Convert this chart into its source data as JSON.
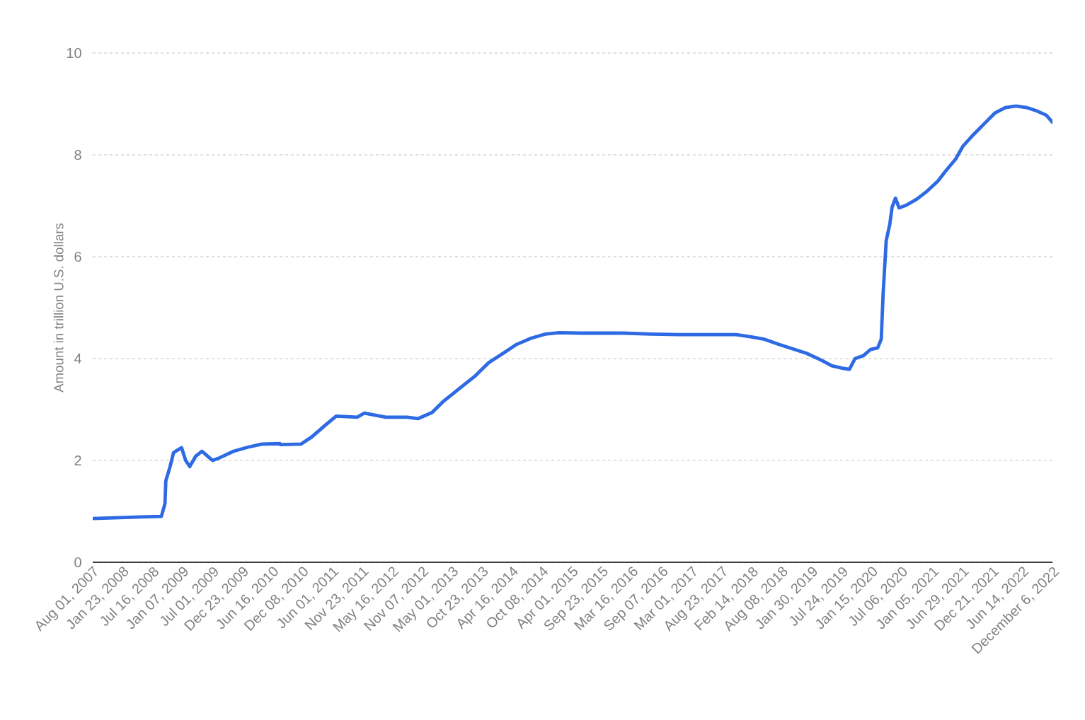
{
  "chart_data": {
    "type": "line",
    "ylabel": "Amount in trillion U.S. dollars",
    "xlim": [
      "2007-08-01",
      "2022-12-06"
    ],
    "ylim": [
      0,
      10
    ],
    "yticks": [
      0,
      2,
      4,
      6,
      8,
      10
    ],
    "xticks": [
      {
        "value": "2007-08-01",
        "label": "Aug 01, 2007"
      },
      {
        "value": "2008-01-23",
        "label": "Jan 23, 2008"
      },
      {
        "value": "2008-07-16",
        "label": "Jul 16, 2008"
      },
      {
        "value": "2009-01-07",
        "label": "Jan 07, 2009"
      },
      {
        "value": "2009-07-01",
        "label": "Jul 01, 2009"
      },
      {
        "value": "2009-12-23",
        "label": "Dec 23, 2009"
      },
      {
        "value": "2010-06-16",
        "label": "Jun 16, 2010"
      },
      {
        "value": "2010-12-08",
        "label": "Dec 08, 2010"
      },
      {
        "value": "2011-06-01",
        "label": "Jun 01, 2011"
      },
      {
        "value": "2011-11-23",
        "label": "Nov 23, 2011"
      },
      {
        "value": "2012-05-16",
        "label": "May 16, 2012"
      },
      {
        "value": "2012-11-07",
        "label": "Nov 07, 2012"
      },
      {
        "value": "2013-05-01",
        "label": "May 01, 2013"
      },
      {
        "value": "2013-10-23",
        "label": "Oct 23, 2013"
      },
      {
        "value": "2014-04-16",
        "label": "Apr 16, 2014"
      },
      {
        "value": "2014-10-08",
        "label": "Oct 08, 2014"
      },
      {
        "value": "2015-04-01",
        "label": "Apr 01, 2015"
      },
      {
        "value": "2015-09-23",
        "label": "Sep 23, 2015"
      },
      {
        "value": "2016-03-16",
        "label": "Mar 16, 2016"
      },
      {
        "value": "2016-09-07",
        "label": "Sep 07, 2016"
      },
      {
        "value": "2017-03-01",
        "label": "Mar 01, 2017"
      },
      {
        "value": "2017-08-23",
        "label": "Aug 23, 2017"
      },
      {
        "value": "2018-02-14",
        "label": "Feb 14, 2018"
      },
      {
        "value": "2018-08-08",
        "label": "Aug 08, 2018"
      },
      {
        "value": "2019-01-30",
        "label": "Jan 30, 2019"
      },
      {
        "value": "2019-07-24",
        "label": "Jul 24, 2019"
      },
      {
        "value": "2020-01-15",
        "label": "Jan 15, 2020"
      },
      {
        "value": "2020-07-06",
        "label": "Jul 06, 2020"
      },
      {
        "value": "2021-01-05",
        "label": "Jan 05, 2021"
      },
      {
        "value": "2021-06-29",
        "label": "Jun 29, 2021"
      },
      {
        "value": "2021-12-21",
        "label": "Dec 21, 2021"
      },
      {
        "value": "2022-06-14",
        "label": "Jun 14, 2022"
      },
      {
        "value": "2022-12-06",
        "label": "December 6, 2022"
      }
    ],
    "x": [
      "2007-08-01",
      "2008-05-12",
      "2008-09-05",
      "2008-09-26",
      "2008-10-01",
      "2008-10-26",
      "2008-11-15",
      "2008-12-07",
      "2009-01-01",
      "2009-01-25",
      "2009-02-18",
      "2009-03-24",
      "2009-04-30",
      "2009-05-28",
      "2009-07-01",
      "2009-08-10",
      "2009-11-01",
      "2010-01-24",
      "2010-04-16",
      "2010-07-29",
      "2010-08-01",
      "2010-11-29",
      "2011-01-31",
      "2011-04-23",
      "2011-06-23",
      "2011-10-25",
      "2011-12-05",
      "2012-04-08",
      "2012-08-11",
      "2012-10-12",
      "2013-01-03",
      "2013-03-07",
      "2013-06-18",
      "2013-09-09",
      "2013-11-30",
      "2014-02-21",
      "2014-05-13",
      "2014-08-04",
      "2014-10-26",
      "2015-01-16",
      "2015-05-20",
      "2015-09-21",
      "2016-01-23",
      "2016-07-07",
      "2016-12-19",
      "2017-06-03",
      "2017-11-15",
      "2018-02-06",
      "2018-04-29",
      "2018-07-20",
      "2018-10-11",
      "2019-01-02",
      "2019-03-26",
      "2019-05-27",
      "2019-07-28",
      "2019-09-07",
      "2019-10-10",
      "2019-11-29",
      "2020-01-09",
      "2020-02-19",
      "2020-03-11",
      "2020-03-22",
      "2020-04-09",
      "2020-04-30",
      "2020-05-13",
      "2020-06-02",
      "2020-06-23",
      "2020-08-03",
      "2020-10-04",
      "2020-12-05",
      "2021-02-06",
      "2021-03-19",
      "2021-05-20",
      "2021-07-01",
      "2021-09-01",
      "2021-11-02",
      "2022-01-03",
      "2022-03-06",
      "2022-05-07",
      "2022-07-08",
      "2022-09-08",
      "2022-10-31",
      "2022-12-06"
    ],
    "series": [
      {
        "color": "#2d6ae3",
        "values": [
          0.86,
          0.89,
          0.9,
          1.15,
          1.6,
          1.88,
          2.15,
          2.2,
          2.25,
          2.0,
          1.88,
          2.08,
          2.18,
          2.1,
          2.0,
          2.05,
          2.18,
          2.26,
          2.32,
          2.33,
          2.31,
          2.32,
          2.46,
          2.7,
          2.87,
          2.85,
          2.93,
          2.85,
          2.85,
          2.82,
          2.94,
          3.15,
          3.43,
          3.65,
          3.92,
          4.1,
          4.28,
          4.4,
          4.48,
          4.51,
          4.5,
          4.5,
          4.5,
          4.48,
          4.47,
          4.47,
          4.47,
          4.43,
          4.38,
          4.28,
          4.19,
          4.1,
          3.97,
          3.86,
          3.81,
          3.79,
          4.0,
          4.06,
          4.18,
          4.21,
          4.38,
          5.28,
          6.32,
          6.64,
          6.97,
          7.15,
          6.96,
          7.01,
          7.13,
          7.29,
          7.49,
          7.67,
          7.92,
          8.17,
          8.4,
          8.61,
          8.82,
          8.93,
          8.96,
          8.93,
          8.86,
          8.78,
          8.64
        ]
      }
    ],
    "grid": "y",
    "line_style": "solid",
    "marker": "none"
  }
}
